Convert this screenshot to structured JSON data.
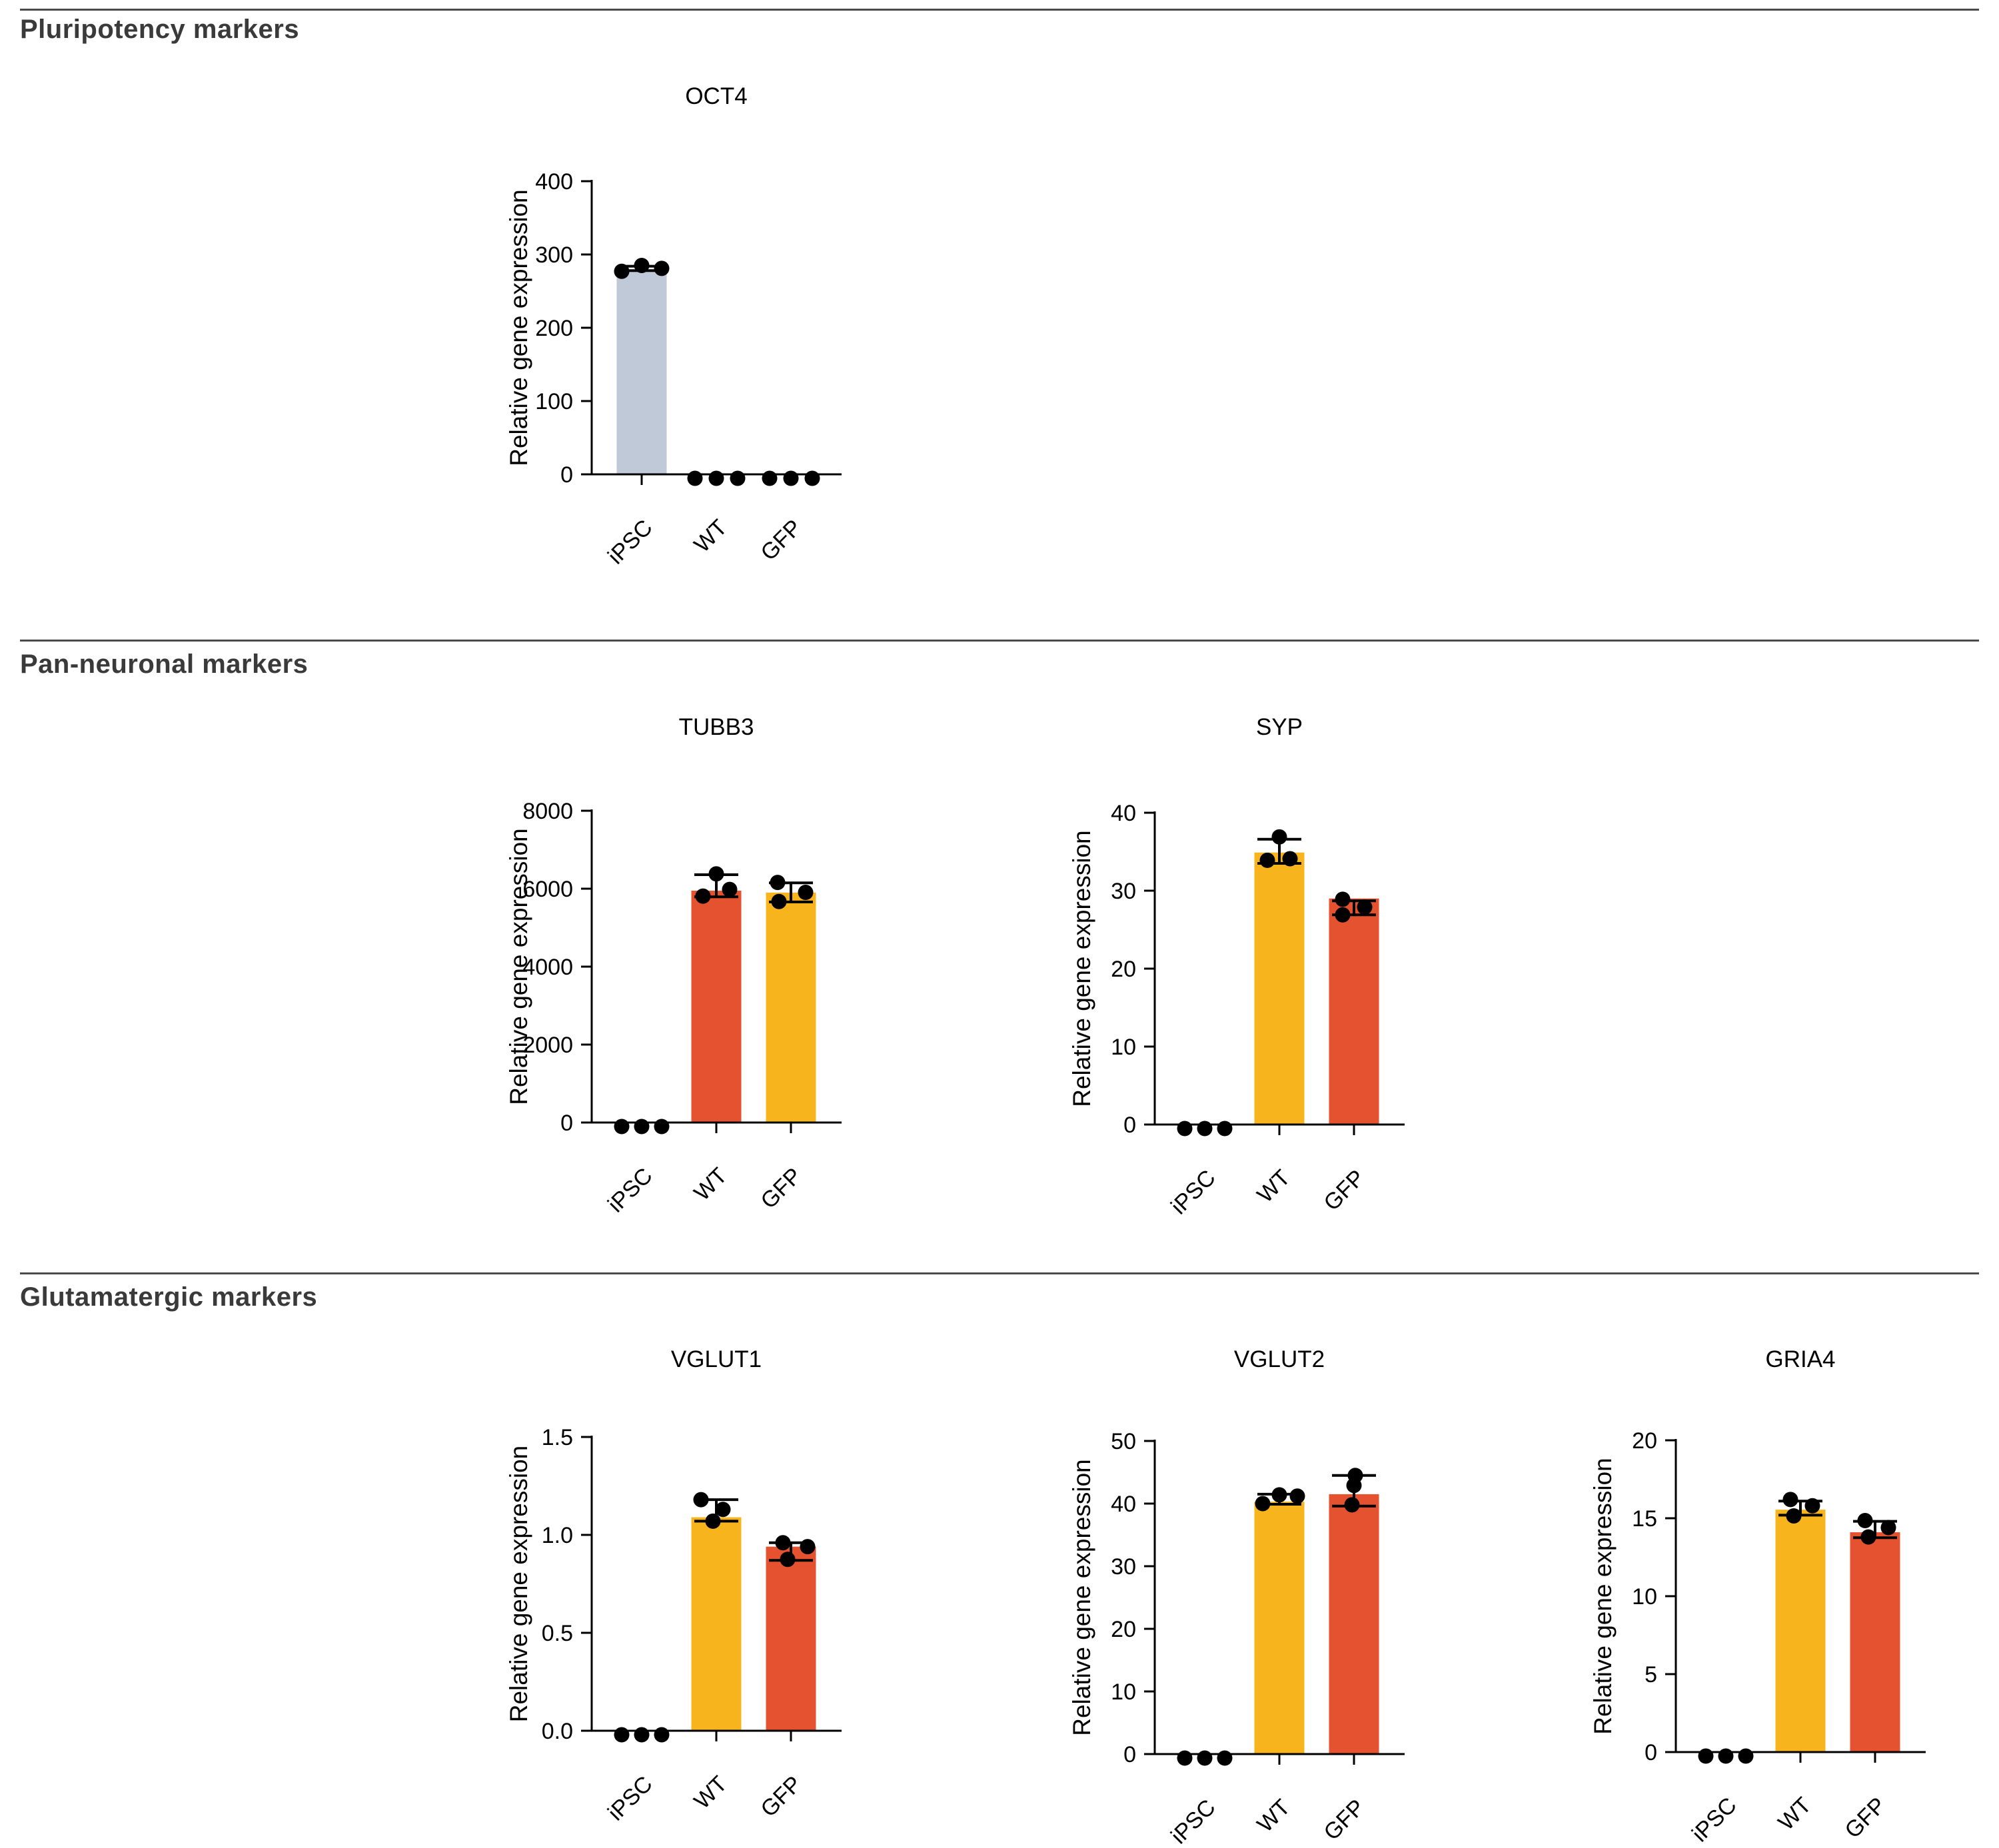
{
  "figure": {
    "sections": [
      {
        "title": "Pluripotency markers"
      },
      {
        "title": "Pan-neuronal markers"
      },
      {
        "title": "Glutamatergic markers"
      }
    ]
  },
  "colors": {
    "ipsc_bar": "#bfc9d8",
    "yellow_bar": "#f8b41d",
    "red_bar": "#e5522f",
    "point": "#000000",
    "axis": "#000000",
    "divider": "#4a4a4a",
    "header_text": "#3a3a3a"
  },
  "chart_data": [
    {
      "id": "oct4",
      "type": "bar",
      "section": 0,
      "title": "OCT4",
      "ylabel": "Relative gene expression",
      "categories": [
        "iPSC",
        "WT",
        "GFP"
      ],
      "ylim": [
        0,
        400
      ],
      "yticks": [
        0,
        100,
        200,
        300,
        400
      ],
      "ytick_labels": [
        "0",
        "100",
        "200",
        "300",
        "400"
      ],
      "legend": "none",
      "grid": false,
      "series": [
        {
          "category": "iPSC",
          "bar": 280,
          "color": "#bfc9d8",
          "err": [
            278,
            284
          ],
          "points": [
            {
              "v": 277,
              "dx": -30
            },
            {
              "v": 285,
              "dx": 0
            },
            {
              "v": 281,
              "dx": 30
            }
          ]
        },
        {
          "category": "WT",
          "bar": 0,
          "color": null,
          "err": null,
          "points": [
            {
              "v": 0,
              "dx": -32
            },
            {
              "v": 0,
              "dx": 0
            },
            {
              "v": 0,
              "dx": 32
            }
          ]
        },
        {
          "category": "GFP",
          "bar": 0,
          "color": null,
          "err": null,
          "points": [
            {
              "v": 0,
              "dx": -32
            },
            {
              "v": 0,
              "dx": 0
            },
            {
              "v": 0,
              "dx": 32
            }
          ]
        }
      ]
    },
    {
      "id": "tubb3",
      "type": "bar",
      "section": 1,
      "title": "TUBB3",
      "ylabel": "Relative gene expression",
      "categories": [
        "iPSC",
        "WT",
        "GFP"
      ],
      "ylim": [
        0,
        8000
      ],
      "yticks": [
        0,
        2000,
        4000,
        6000,
        8000
      ],
      "ytick_labels": [
        "0",
        "2000",
        "4000",
        "6000",
        "8000"
      ],
      "legend": "none",
      "grid": false,
      "series": [
        {
          "category": "iPSC",
          "bar": 0,
          "color": null,
          "err": null,
          "points": [
            {
              "v": 0,
              "dx": -30
            },
            {
              "v": 0,
              "dx": 0
            },
            {
              "v": 0,
              "dx": 30
            }
          ]
        },
        {
          "category": "WT",
          "bar": 5950,
          "color": "#e5522f",
          "err": [
            5790,
            6360
          ],
          "points": [
            {
              "v": 5810,
              "dx": -20
            },
            {
              "v": 6380,
              "dx": 0
            },
            {
              "v": 5980,
              "dx": 20
            }
          ]
        },
        {
          "category": "GFP",
          "bar": 5900,
          "color": "#f8b41d",
          "err": [
            5660,
            6150
          ],
          "points": [
            {
              "v": 6160,
              "dx": -20
            },
            {
              "v": 5670,
              "dx": -18
            },
            {
              "v": 5905,
              "dx": 22
            }
          ]
        }
      ]
    },
    {
      "id": "syp",
      "type": "bar",
      "section": 1,
      "title": "SYP",
      "ylabel": "Relative gene expression",
      "categories": [
        "iPSC",
        "WT",
        "GFP"
      ],
      "ylim": [
        0,
        40
      ],
      "yticks": [
        0,
        10,
        20,
        30,
        40
      ],
      "ytick_labels": [
        "0",
        "10",
        "20",
        "30",
        "40"
      ],
      "legend": "none",
      "grid": false,
      "series": [
        {
          "category": "iPSC",
          "bar": 0,
          "color": null,
          "err": null,
          "points": [
            {
              "v": 0,
              "dx": -30
            },
            {
              "v": 0,
              "dx": 0
            },
            {
              "v": 0,
              "dx": 30
            }
          ]
        },
        {
          "category": "WT",
          "bar": 34.9,
          "color": "#f8b41d",
          "err": [
            33.5,
            36.6
          ],
          "points": [
            {
              "v": 36.9,
              "dx": 0
            },
            {
              "v": 33.9,
              "dx": -18
            },
            {
              "v": 34.1,
              "dx": 16
            }
          ]
        },
        {
          "category": "GFP",
          "bar": 29.0,
          "color": "#e5522f",
          "err": [
            26.9,
            28.7
          ],
          "points": [
            {
              "v": 28.9,
              "dx": -17
            },
            {
              "v": 27.9,
              "dx": 16
            },
            {
              "v": 26.9,
              "dx": -17
            }
          ]
        }
      ]
    },
    {
      "id": "vglut1",
      "type": "bar",
      "section": 2,
      "title": "VGLUT1",
      "ylabel": "Relative gene expression",
      "categories": [
        "iPSC",
        "WT",
        "GFP"
      ],
      "ylim": [
        0,
        1.5
      ],
      "yticks": [
        0,
        0.5,
        1.0,
        1.5
      ],
      "ytick_labels": [
        "0.0",
        "0.5",
        "1.0",
        "1.5"
      ],
      "legend": "none",
      "grid": false,
      "series": [
        {
          "category": "iPSC",
          "bar": 0,
          "color": null,
          "err": null,
          "points": [
            {
              "v": 0,
              "dx": -30
            },
            {
              "v": 0,
              "dx": 0
            },
            {
              "v": 0,
              "dx": 30
            }
          ]
        },
        {
          "category": "WT",
          "bar": 1.09,
          "color": "#f8b41d",
          "err": [
            1.07,
            1.18
          ],
          "points": [
            {
              "v": 1.18,
              "dx": -23
            },
            {
              "v": 1.13,
              "dx": 10
            },
            {
              "v": 1.07,
              "dx": -5
            }
          ]
        },
        {
          "category": "GFP",
          "bar": 0.94,
          "color": "#e5522f",
          "err": [
            0.87,
            0.96
          ],
          "points": [
            {
              "v": 0.96,
              "dx": -12
            },
            {
              "v": 0.94,
              "dx": 25
            },
            {
              "v": 0.875,
              "dx": -5
            }
          ]
        }
      ]
    },
    {
      "id": "vglut2",
      "type": "bar",
      "section": 2,
      "title": "VGLUT2",
      "ylabel": "Relative gene expression",
      "categories": [
        "iPSC",
        "WT",
        "GFP"
      ],
      "ylim": [
        0,
        50
      ],
      "yticks": [
        0,
        10,
        20,
        30,
        40,
        50
      ],
      "ytick_labels": [
        "0",
        "10",
        "20",
        "30",
        "40",
        "50"
      ],
      "legend": "none",
      "grid": false,
      "series": [
        {
          "category": "iPSC",
          "bar": 0,
          "color": null,
          "err": null,
          "points": [
            {
              "v": 0,
              "dx": -30
            },
            {
              "v": 0,
              "dx": 0
            },
            {
              "v": 0,
              "dx": 30
            }
          ]
        },
        {
          "category": "WT",
          "bar": 40.3,
          "color": "#f8b41d",
          "err": [
            39.9,
            41.5
          ],
          "points": [
            {
              "v": 40.0,
              "dx": -25
            },
            {
              "v": 41.4,
              "dx": 0
            },
            {
              "v": 41.2,
              "dx": 27
            }
          ]
        },
        {
          "category": "GFP",
          "bar": 41.5,
          "color": "#e5522f",
          "err": [
            39.6,
            44.5
          ],
          "points": [
            {
              "v": 44.5,
              "dx": 2
            },
            {
              "v": 42.9,
              "dx": 0
            },
            {
              "v": 39.8,
              "dx": -3
            }
          ]
        }
      ]
    },
    {
      "id": "gria4",
      "type": "bar",
      "section": 2,
      "title": "GRIA4",
      "ylabel": "Relative gene expression",
      "categories": [
        "iPSC",
        "WT",
        "GFP"
      ],
      "ylim": [
        0,
        20
      ],
      "yticks": [
        0,
        5,
        10,
        15,
        20
      ],
      "ytick_labels": [
        "0",
        "5",
        "10",
        "15",
        "20"
      ],
      "legend": "none",
      "grid": false,
      "series": [
        {
          "category": "iPSC",
          "bar": 0,
          "color": null,
          "err": null,
          "points": [
            {
              "v": 0,
              "dx": -30
            },
            {
              "v": 0,
              "dx": 0
            },
            {
              "v": 0,
              "dx": 30
            }
          ]
        },
        {
          "category": "WT",
          "bar": 15.55,
          "color": "#f8b41d",
          "err": [
            15.2,
            16.1
          ],
          "points": [
            {
              "v": 16.2,
              "dx": -15
            },
            {
              "v": 15.15,
              "dx": -10
            },
            {
              "v": 15.8,
              "dx": 18
            }
          ]
        },
        {
          "category": "GFP",
          "bar": 14.1,
          "color": "#e5522f",
          "err": [
            13.75,
            14.8
          ],
          "points": [
            {
              "v": 14.85,
              "dx": -15
            },
            {
              "v": 13.8,
              "dx": -10
            },
            {
              "v": 14.4,
              "dx": 20
            }
          ]
        }
      ]
    }
  ]
}
